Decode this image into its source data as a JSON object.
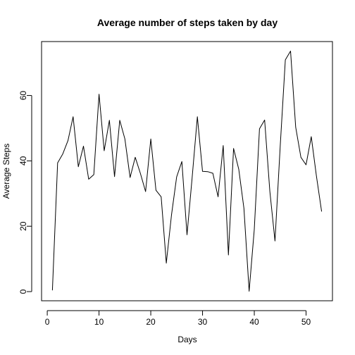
{
  "chart_data": {
    "type": "line",
    "title": "Average number of steps taken by day",
    "xlabel": "Days",
    "ylabel": "Average Steps",
    "xlim": [
      -1.1,
      55.1
    ],
    "ylim": [
      -2.8,
      76.5
    ],
    "xticks": [
      0,
      10,
      20,
      30,
      40,
      50
    ],
    "yticks": [
      0,
      20,
      40,
      60
    ],
    "grid": false,
    "legend": "none",
    "line_color": "#000000",
    "x": [
      1,
      2,
      3,
      4,
      5,
      6,
      7,
      8,
      9,
      10,
      11,
      12,
      13,
      14,
      15,
      16,
      17,
      18,
      19,
      20,
      21,
      22,
      23,
      24,
      25,
      26,
      27,
      28,
      29,
      30,
      31,
      32,
      33,
      34,
      35,
      36,
      37,
      38,
      39,
      40,
      41,
      42,
      43,
      44,
      45,
      46,
      47,
      48,
      49,
      50,
      51,
      52,
      53
    ],
    "y": [
      0.4,
      39.4,
      42.1,
      46.2,
      53.5,
      38.2,
      44.5,
      34.4,
      35.8,
      60.4,
      43.1,
      52.4,
      35.2,
      52.4,
      46.7,
      34.9,
      41.1,
      36.1,
      30.6,
      46.7,
      31.0,
      29.0,
      8.7,
      23.5,
      35.1,
      39.8,
      17.4,
      34.9,
      53.5,
      36.8,
      36.7,
      36.2,
      29.0,
      44.7,
      11.2,
      43.8,
      37.4,
      25.5,
      0.1,
      19.0,
      49.8,
      52.5,
      30.7,
      15.5,
      44.4,
      70.9,
      73.6,
      50.3,
      41.1,
      38.8,
      47.4,
      35.4,
      24.5
    ]
  }
}
